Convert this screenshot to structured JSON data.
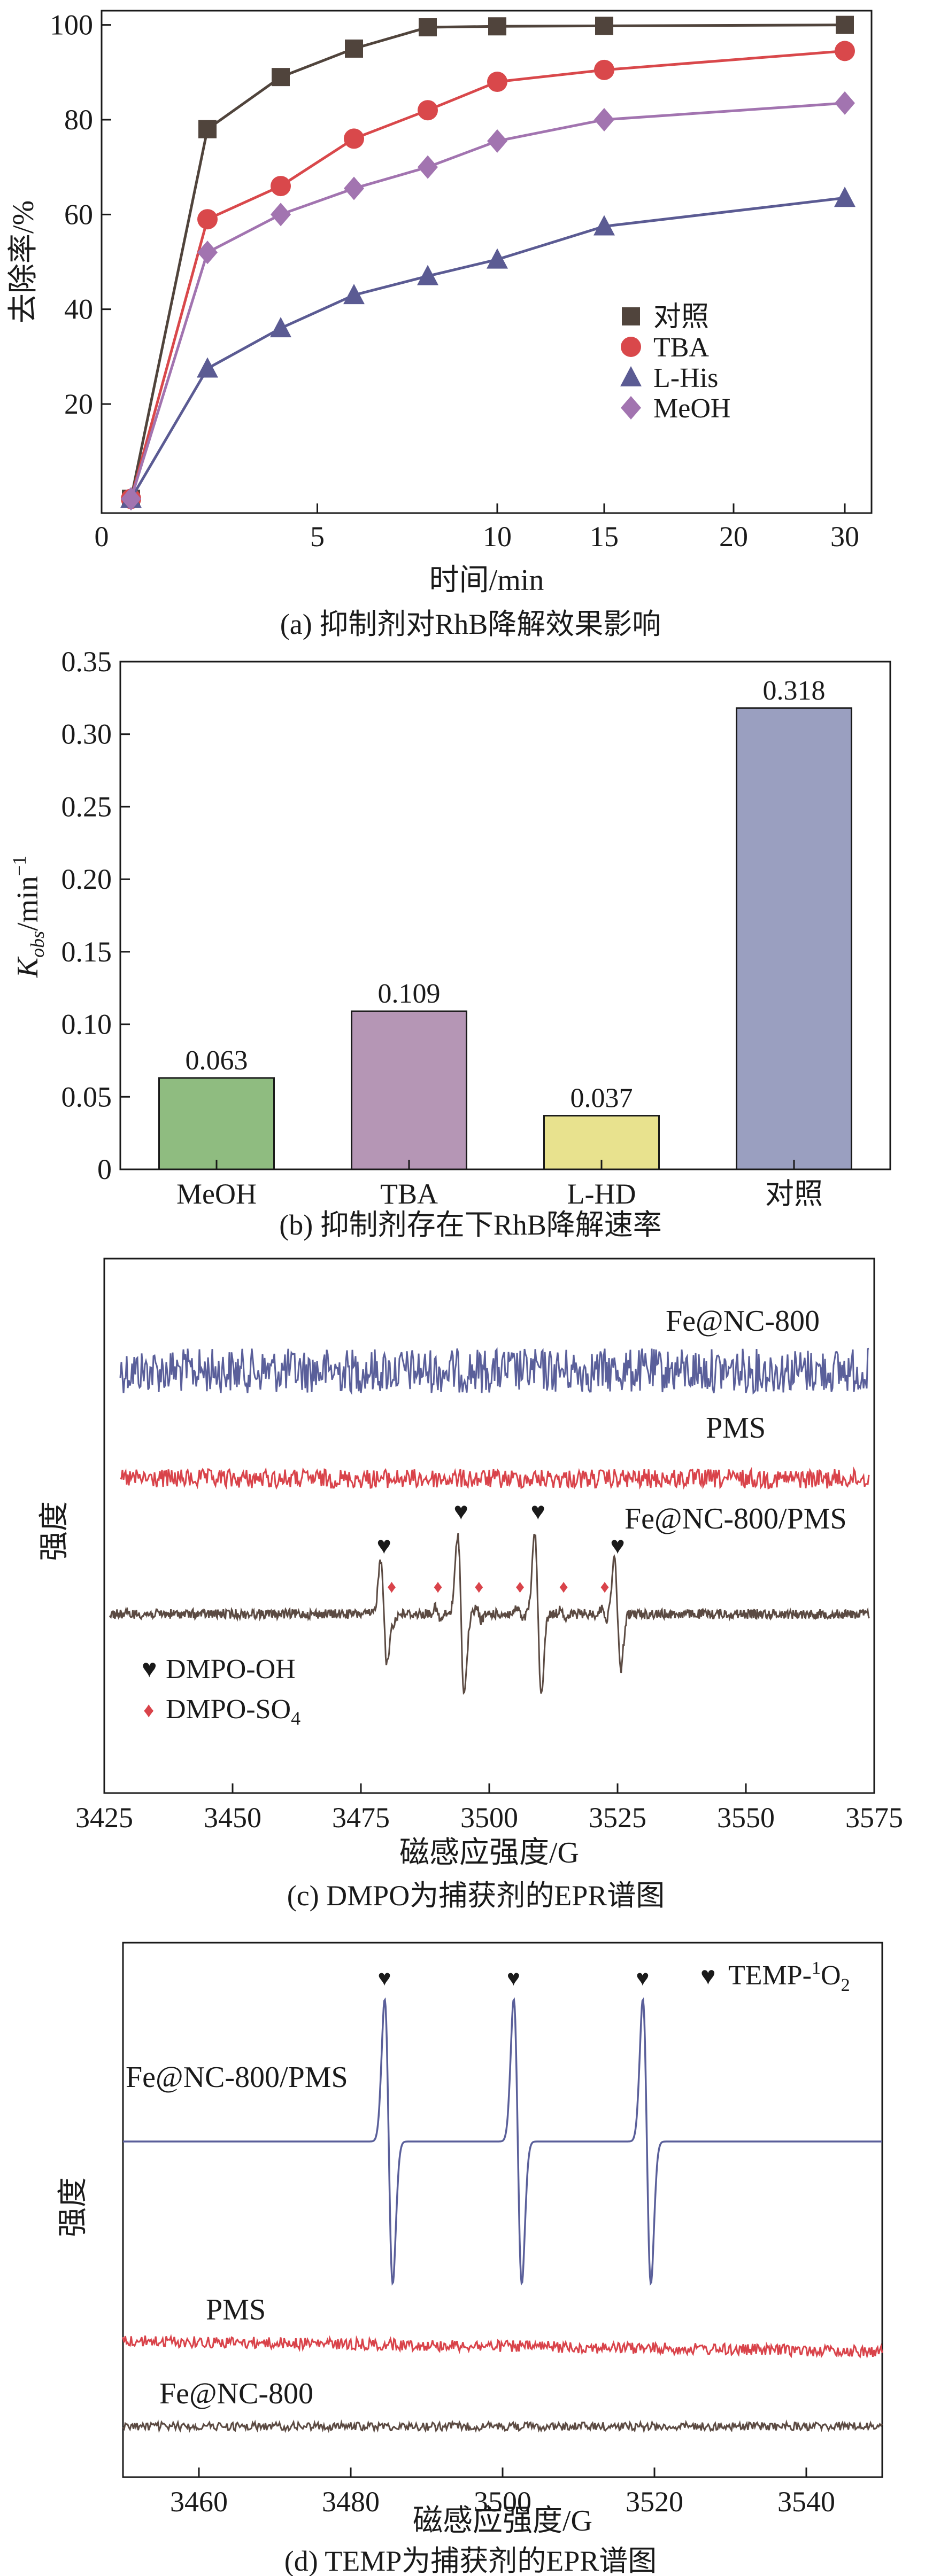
{
  "chart_data": [
    {
      "panel": "a",
      "type": "line",
      "caption": "(a) 抑制剂对RhB降解效果影响",
      "xlabel": "时间/min",
      "ylabel": "去除率/%",
      "xlim": [
        0,
        31
      ],
      "ylim": [
        -3,
        103
      ],
      "xticks": [
        "0",
        "5",
        "10",
        "15",
        "20",
        "30"
      ],
      "yticks": [
        "20",
        "40",
        "60",
        "80",
        "100"
      ],
      "x_display": [
        0,
        2,
        4,
        6,
        8,
        10,
        15,
        30
      ],
      "series": [
        {
          "name": "对照",
          "color": "#50443c",
          "marker": "square",
          "values": [
            0,
            78,
            89,
            95,
            99.5,
            99.7,
            99.8,
            100
          ]
        },
        {
          "name": "TBA",
          "color": "#d9484b",
          "marker": "circle",
          "values": [
            0,
            59,
            66,
            76,
            82,
            88,
            90.5,
            94.5
          ]
        },
        {
          "name": "L-His",
          "color": "#5b5b93",
          "marker": "triangle",
          "values": [
            0,
            27.5,
            36,
            43,
            47,
            50.5,
            57.5,
            63.5
          ]
        },
        {
          "name": "MeOH",
          "color": "#a274b0",
          "marker": "diamond",
          "values": [
            0,
            52,
            60,
            65.5,
            70,
            75.5,
            80,
            83.5
          ]
        }
      ],
      "legend": "center-right"
    },
    {
      "panel": "b",
      "type": "bar",
      "caption": "(b) 抑制剂存在下RhB降解速率",
      "ylabel": "K_obs/min^-1",
      "ylim": [
        0,
        0.35
      ],
      "yticks": [
        "0",
        "0.05",
        "0.10",
        "0.15",
        "0.20",
        "0.25",
        "0.30",
        "0.35"
      ],
      "categories": [
        "MeOH",
        "TBA",
        "L-HD",
        "对照"
      ],
      "values": [
        0.063,
        0.109,
        0.037,
        0.318
      ],
      "labels": [
        "0.063",
        "0.109",
        "0.037",
        "0.318"
      ],
      "colors": [
        "#8fbc80",
        "#b596b5",
        "#e8e28e",
        "#9a9fc0"
      ]
    },
    {
      "panel": "c",
      "type": "line",
      "caption": "(c) DMPO为捕获剂的EPR谱图",
      "xlabel": "磁感应强度/G",
      "ylabel": "强度",
      "xlim": [
        3425,
        3575
      ],
      "xticks": [
        "3425",
        "3450",
        "3475",
        "3500",
        "3525",
        "3550",
        "3575"
      ],
      "series": [
        {
          "name": "Fe@NC-800",
          "color": "#5a5f9a"
        },
        {
          "name": "PMS",
          "color": "#d9434a"
        },
        {
          "name": "Fe@NC-800/PMS",
          "color": "#5b4a42"
        }
      ],
      "legend": [
        {
          "label": "DMPO-OH",
          "marker": "heart"
        },
        {
          "label": "DMPO-SO",
          "sub": "4",
          "marker": "diamond"
        }
      ],
      "peaks_oh": [
        3479.5,
        3494.5,
        3509.5,
        3525
      ],
      "peaks_so4": [
        3481,
        3490,
        3498,
        3506,
        3514.5,
        3522.5
      ]
    },
    {
      "panel": "d",
      "type": "line",
      "caption": "(d) TEMP为捕获剂的EPR谱图",
      "xlabel": "磁感应强度/G",
      "ylabel": "强度",
      "xlim": [
        3450,
        3550
      ],
      "xticks": [
        "3460",
        "3480",
        "3500",
        "3520",
        "3540"
      ],
      "series": [
        {
          "name": "Fe@NC-800/PMS",
          "color": "#5a5f9a"
        },
        {
          "name": "PMS",
          "color": "#d9434a"
        },
        {
          "name": "Fe@NC-800",
          "color": "#5b4a42"
        }
      ],
      "legend": [
        {
          "label": "TEMP-",
          "sup": "1",
          "label2": "O",
          "sub": "2",
          "marker": "heart"
        }
      ],
      "peaks": [
        3485,
        3502,
        3519
      ]
    }
  ]
}
